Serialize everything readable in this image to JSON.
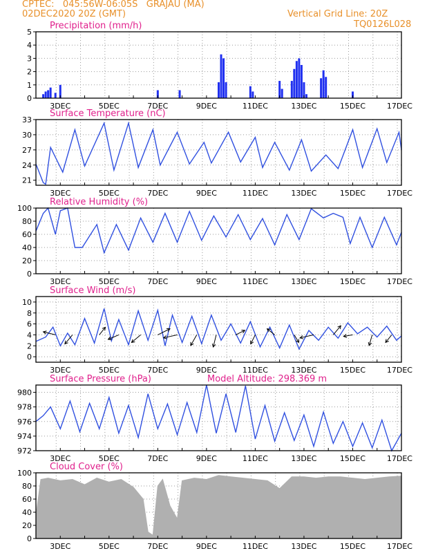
{
  "header": {
    "line1": "CPTEC:   045:56W-06:05S   GRAJAU (MA)",
    "line2": "02DEC2020 20Z (GMT)",
    "grid_note": "Vertical Grid Line: 20Z",
    "run_code": "TQ0126L028"
  },
  "x_ticks": [
    "3DEC",
    "5DEC",
    "7DEC",
    "9DEC",
    "11DEC",
    "13DEC",
    "15DEC",
    "17DEC"
  ],
  "colors": {
    "line": "#3050e0",
    "bar": "#2030f0",
    "cloud": "#b0b0b0",
    "title": "#e0208c",
    "header": "#e8902a"
  },
  "chart_data": [
    {
      "type": "bar",
      "title": "Precipitation (mm/h)",
      "ylim": [
        0,
        5
      ],
      "yticks": [
        "0",
        "1",
        "2",
        "3",
        "4",
        "5"
      ],
      "x_range_days": [
        2.0,
        17.0
      ],
      "x": [
        2.3,
        2.4,
        2.5,
        2.6,
        2.8,
        3.0,
        7.0,
        7.9,
        9.5,
        9.6,
        9.7,
        9.8,
        10.8,
        10.9,
        12.0,
        12.1,
        12.5,
        12.6,
        12.7,
        12.8,
        12.9,
        13.0,
        13.1,
        13.7,
        13.8,
        13.9,
        15.0
      ],
      "values": [
        0.3,
        0.5,
        0.6,
        0.8,
        0.4,
        1.0,
        0.6,
        0.6,
        1.2,
        3.3,
        3.0,
        1.2,
        0.9,
        0.5,
        1.3,
        0.7,
        1.3,
        2.2,
        2.8,
        3.0,
        2.5,
        1.2,
        0.3,
        1.5,
        2.1,
        1.6,
        0.5
      ]
    },
    {
      "type": "line",
      "title": "Surface Temperature (nC)",
      "ylim": [
        20,
        33
      ],
      "yticks": [
        "21",
        "24",
        "27",
        "30",
        "33"
      ],
      "x": [
        2.0,
        2.3,
        2.4,
        2.6,
        3.1,
        3.6,
        4.0,
        4.8,
        5.2,
        5.8,
        6.2,
        6.8,
        7.1,
        7.8,
        8.3,
        8.9,
        9.2,
        9.9,
        10.4,
        11.0,
        11.3,
        11.8,
        12.4,
        12.9,
        13.3,
        13.9,
        14.4,
        15.0,
        15.4,
        16.0,
        16.4,
        16.9,
        17.0
      ],
      "values": [
        24.2,
        20.5,
        20.2,
        27.5,
        22.6,
        31.0,
        23.8,
        32.3,
        23.0,
        32.3,
        23.5,
        31.0,
        24.0,
        30.5,
        24.2,
        28.5,
        24.4,
        30.5,
        24.6,
        29.5,
        23.5,
        28.5,
        23.0,
        29.0,
        22.8,
        26.0,
        23.3,
        31.0,
        23.5,
        31.2,
        24.5,
        30.5,
        27.0
      ]
    },
    {
      "type": "line",
      "title": "Relative Humidity (%)",
      "ylim": [
        0,
        100
      ],
      "yticks": [
        "0",
        "20",
        "40",
        "60",
        "80",
        "100"
      ],
      "x": [
        2.0,
        2.3,
        2.5,
        2.8,
        3.0,
        3.3,
        3.6,
        3.9,
        4.5,
        4.8,
        5.3,
        5.8,
        6.3,
        6.8,
        7.3,
        7.8,
        8.3,
        8.8,
        9.3,
        9.8,
        10.3,
        10.8,
        11.3,
        11.8,
        12.3,
        12.8,
        13.3,
        13.8,
        14.2,
        14.6,
        14.9,
        15.3,
        15.8,
        16.3,
        16.8,
        17.0
      ],
      "values": [
        65,
        92,
        100,
        60,
        96,
        100,
        40,
        40,
        75,
        32,
        75,
        36,
        85,
        48,
        92,
        48,
        95,
        51,
        88,
        56,
        90,
        52,
        84,
        44,
        90,
        52,
        99,
        85,
        92,
        86,
        46,
        86,
        40,
        86,
        44,
        63
      ]
    },
    {
      "type": "line",
      "title": "Surface Wind (m/s)",
      "ylim": [
        -1,
        11
      ],
      "yticks": [
        "0",
        "2",
        "4",
        "6",
        "8",
        "10"
      ],
      "x": [
        2.0,
        2.4,
        2.7,
        3.0,
        3.3,
        3.6,
        4.0,
        4.4,
        4.8,
        5.1,
        5.4,
        5.8,
        6.2,
        6.6,
        7.0,
        7.3,
        7.6,
        8.0,
        8.4,
        8.8,
        9.2,
        9.6,
        10.0,
        10.4,
        10.8,
        11.2,
        11.6,
        12.0,
        12.4,
        12.8,
        13.2,
        13.6,
        14.0,
        14.4,
        14.8,
        15.2,
        15.6,
        16.0,
        16.4,
        16.8,
        17.0
      ],
      "values": [
        2.8,
        3.6,
        5.4,
        2.0,
        4.3,
        2.2,
        7.0,
        2.5,
        8.8,
        2.9,
        6.8,
        2.2,
        8.4,
        3.0,
        8.5,
        2.0,
        7.6,
        2.6,
        7.4,
        2.4,
        7.6,
        3.0,
        6.0,
        2.5,
        6.4,
        1.8,
        5.4,
        1.6,
        5.8,
        1.4,
        4.8,
        3.0,
        5.4,
        3.4,
        6.2,
        4.2,
        5.4,
        3.6,
        5.6,
        3.0,
        3.8
      ],
      "vectors": {
        "x": [
          2.8,
          3.5,
          4.6,
          5.4,
          6.3,
          7.0,
          7.8,
          8.6,
          9.4,
          10.2,
          11.0,
          11.8,
          12.6,
          13.4,
          14.2,
          15.0,
          15.8,
          16.6
        ],
        "u": [
          -0.8,
          -0.5,
          0.4,
          -0.7,
          -0.6,
          0.8,
          -0.9,
          -0.4,
          -0.2,
          0.6,
          -0.3,
          -0.5,
          0.3,
          -0.9,
          0.5,
          -0.6,
          -0.2,
          -0.4
        ],
        "v": [
          0.2,
          -0.6,
          0.5,
          -0.3,
          -0.5,
          0.4,
          -0.2,
          -0.7,
          -0.8,
          0.3,
          -0.6,
          0.4,
          -0.5,
          -0.2,
          0.6,
          -0.1,
          -0.7,
          -0.5
        ],
        "base": 4.0
      }
    },
    {
      "type": "line",
      "title": "Surface Pressure (hPa)",
      "annotation": "Model Altitude: 298.369 m",
      "ylim": [
        972,
        981
      ],
      "yticks": [
        "972",
        "974",
        "976",
        "978",
        "980"
      ],
      "x": [
        2.0,
        2.3,
        2.6,
        3.0,
        3.4,
        3.8,
        4.2,
        4.6,
        5.0,
        5.4,
        5.8,
        6.2,
        6.6,
        7.0,
        7.4,
        7.8,
        8.2,
        8.6,
        9.0,
        9.4,
        9.8,
        10.2,
        10.6,
        11.0,
        11.4,
        11.8,
        12.2,
        12.6,
        13.0,
        13.4,
        13.8,
        14.2,
        14.6,
        15.0,
        15.4,
        15.8,
        16.2,
        16.6,
        17.0
      ],
      "values": [
        976.0,
        976.8,
        978.0,
        975.0,
        978.8,
        974.6,
        978.5,
        975.0,
        979.3,
        974.4,
        978.2,
        973.8,
        979.8,
        975.0,
        978.4,
        974.2,
        978.6,
        974.5,
        981.0,
        974.4,
        979.8,
        974.5,
        980.9,
        973.6,
        978.2,
        973.3,
        977.2,
        973.4,
        976.9,
        972.6,
        977.3,
        973.0,
        976.0,
        972.6,
        975.8,
        972.4,
        976.2,
        972.0,
        974.4
      ]
    },
    {
      "type": "area",
      "title": "Cloud Cover (%)",
      "ylim": [
        0,
        100
      ],
      "yticks": [
        "0",
        "20",
        "40",
        "60",
        "80",
        "100"
      ],
      "x": [
        2.0,
        2.2,
        2.5,
        3.0,
        3.5,
        4.0,
        4.5,
        5.0,
        5.5,
        6.0,
        6.4,
        6.6,
        6.8,
        7.0,
        7.2,
        7.5,
        7.8,
        8.0,
        8.5,
        9.0,
        9.5,
        10.0,
        10.5,
        11.0,
        11.5,
        12.0,
        12.5,
        13.0,
        13.5,
        14.0,
        14.5,
        15.0,
        15.5,
        16.0,
        16.5,
        17.0
      ],
      "values": [
        35,
        90,
        92,
        88,
        90,
        82,
        92,
        86,
        90,
        78,
        60,
        10,
        5,
        80,
        90,
        50,
        30,
        88,
        92,
        90,
        96,
        94,
        92,
        90,
        88,
        76,
        94,
        94,
        92,
        94,
        94,
        92,
        90,
        92,
        94,
        95
      ]
    }
  ]
}
